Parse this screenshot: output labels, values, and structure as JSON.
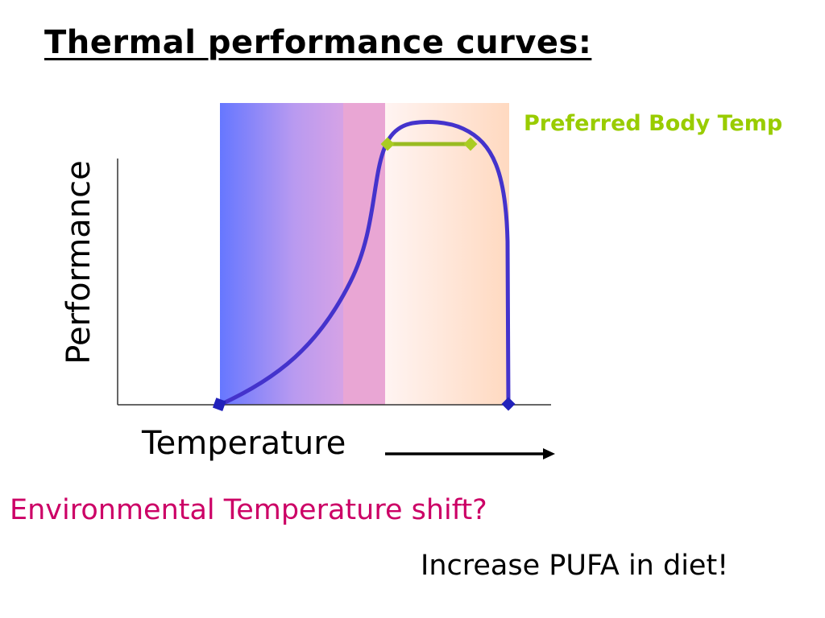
{
  "title": "Thermal performance curves:",
  "labels": {
    "preferred_body_temp": "Preferred Body Temp",
    "y_axis": "Performance",
    "x_axis": "Temperature",
    "question": "Environmental Temperature shift?",
    "answer": "Increase PUFA in diet!"
  },
  "colors": {
    "curve": "#4433cc",
    "preferred_range": "#99cc00",
    "cold_zone_start": "#6677ff",
    "cold_zone_end": "#ee99cc",
    "warm_zone_start": "#fff4f0",
    "warm_zone_end": "#ffd8bf",
    "question_text": "#cc0066",
    "endpoint_marker": "#2222bb"
  }
}
